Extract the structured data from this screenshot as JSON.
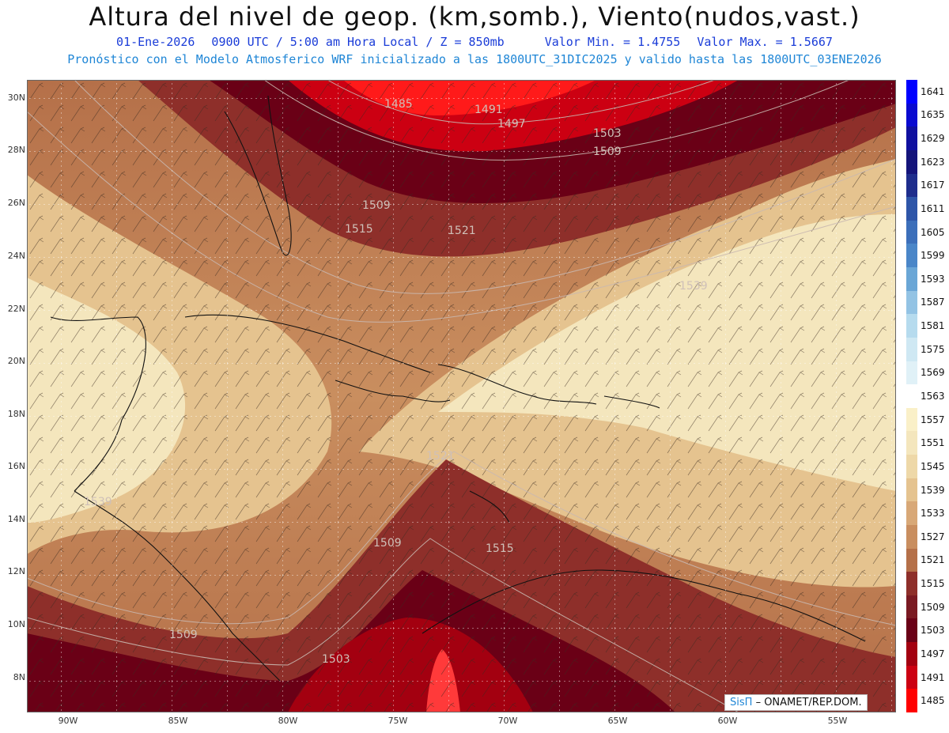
{
  "header": {
    "title": "Altura del nivel de geop. (km,somb.), Viento(nudos,vast.)",
    "date": "01-Ene-2026",
    "time": "0900 UTC / 5:00 am Hora Local / Z = 850mb",
    "min": "Valor Min. = 1.4755",
    "max": "Valor Max. = 1.5667",
    "model_line": "Pronóstico con el Modelo Atmosferico WRF inicializado a las 1800UTC_31DIC2025 y valido hasta las  1800UTC_03ENE2026"
  },
  "map": {
    "lon_range": [
      -92.2,
      -52.8
    ],
    "lat_range": [
      6.8,
      30.8
    ],
    "lat_ticks": [
      "30N",
      "28N",
      "26N",
      "24N",
      "22N",
      "20N",
      "18N",
      "16N",
      "14N",
      "12N",
      "10N",
      "8N"
    ],
    "lon_ticks": [
      "90W",
      "85W",
      "80W",
      "75W",
      "70W",
      "65W",
      "60W",
      "55W"
    ],
    "contour_labels": [
      "1485",
      "1491",
      "1497",
      "1503",
      "1509",
      "1509",
      "1515",
      "1521",
      "1515",
      "1509",
      "1509",
      "1503",
      "1539",
      "1539",
      "1521"
    ],
    "colors": {
      "ocean_low": "#c8001a",
      "mid": "#b98653",
      "high": "#f3e6bd"
    }
  },
  "colorbar": {
    "levels": [
      "1641",
      "1635",
      "1629",
      "1623",
      "1617",
      "1611",
      "1605",
      "1599",
      "1593",
      "1587",
      "1581",
      "1575",
      "1569",
      "1563",
      "1557",
      "1551",
      "1545",
      "1539",
      "1533",
      "1527",
      "1521",
      "1515",
      "1509",
      "1503",
      "1497",
      "1491",
      "1485"
    ],
    "colors": [
      "#0000ff",
      "#0a0ad0",
      "#10109f",
      "#14147a",
      "#1e2d8c",
      "#2e55a8",
      "#3c6fba",
      "#4a86c8",
      "#6aa6d6",
      "#93c3e4",
      "#b6dbee",
      "#cfe8f3",
      "#e0f1f7",
      "#ffffff",
      "#faf0c8",
      "#f4e6bd",
      "#eed8a8",
      "#e5c38f",
      "#d8a877",
      "#c98e5f",
      "#b57049",
      "#8e2f2a",
      "#7a1a22",
      "#6a0016",
      "#a30010",
      "#cc0012",
      "#ff0000"
    ]
  },
  "credit": {
    "sis": "SisΠ",
    "org": "– ONAMET/REP.DOM."
  }
}
